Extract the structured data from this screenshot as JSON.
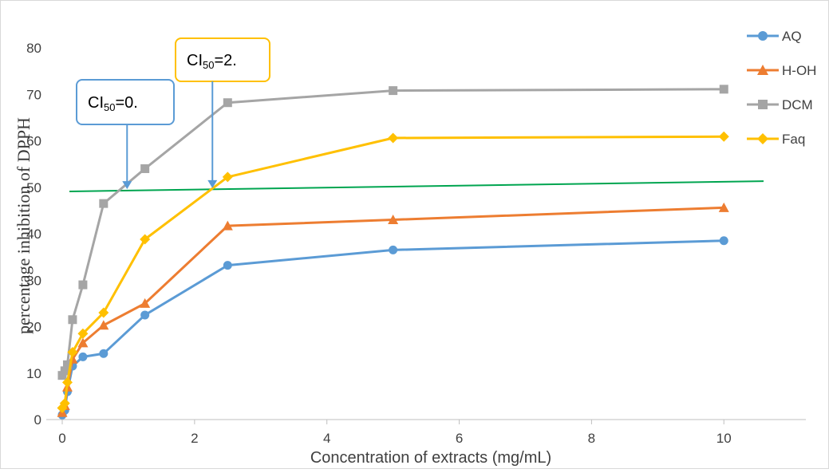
{
  "chart_data": {
    "type": "line",
    "xlabel": "Concentration of extracts (mg/mL)",
    "ylabel": "percentage inhibition of DPPH",
    "xlim": [
      0,
      10.6
    ],
    "ylim": [
      0,
      80
    ],
    "x_ticks": [
      "0",
      "2",
      "4",
      "6",
      "8",
      "10"
    ],
    "y_ticks": [
      "0",
      "10",
      "20",
      "30",
      "40",
      "50",
      "60",
      "70",
      "80"
    ],
    "grid": false,
    "legend_position": "right",
    "series": [
      {
        "name": "AQ",
        "color": "#5B9BD5",
        "marker": "circle",
        "x": [
          0,
          0.039,
          0.078,
          0.156,
          0.3125,
          0.625,
          1.25,
          2.5,
          5,
          10
        ],
        "y": [
          1,
          2,
          6,
          11.5,
          13.5,
          14.2,
          22.5,
          33.2,
          36.5,
          38.5
        ]
      },
      {
        "name": "H-OH",
        "color": "#ED7D31",
        "marker": "triangle",
        "x": [
          0,
          0.039,
          0.078,
          0.156,
          0.3125,
          0.625,
          1.25,
          2.5,
          5,
          10
        ],
        "y": [
          1.5,
          3,
          7,
          13,
          16.5,
          20.3,
          25,
          41.7,
          43,
          45.6
        ]
      },
      {
        "name": "DCM",
        "color": "#A5A5A5",
        "marker": "square",
        "x": [
          0,
          0.039,
          0.078,
          0.156,
          0.3125,
          0.625,
          1.25,
          2.5,
          5,
          10
        ],
        "y": [
          9.5,
          10.5,
          11.8,
          21.5,
          29,
          46.5,
          54,
          68.2,
          70.8,
          71.1
        ]
      },
      {
        "name": "Faq",
        "color": "#FFC000",
        "marker": "diamond",
        "x": [
          0,
          0.039,
          0.078,
          0.156,
          0.3125,
          0.625,
          1.25,
          2.5,
          5,
          10
        ],
        "y": [
          2.5,
          3.5,
          8,
          14.5,
          18.5,
          23,
          38.8,
          52.2,
          60.6,
          60.9
        ]
      }
    ],
    "reference_line": {
      "color": "#00A550",
      "x": [
        0,
        10.6
      ],
      "y": [
        49.1,
        51.3
      ]
    },
    "annotations": [
      {
        "prefix": "CI",
        "subscript": "50",
        "suffix": "=0.",
        "border_color": "#5B9BD5",
        "arrow_color": "#5B9BD5",
        "arrow_target": [
          0.98,
          49.6
        ]
      },
      {
        "prefix": "CI",
        "subscript": "50",
        "suffix": "=2.",
        "border_color": "#FFC000",
        "arrow_color": "#5B9BD5",
        "arrow_target": [
          2.27,
          49.8
        ]
      }
    ]
  }
}
